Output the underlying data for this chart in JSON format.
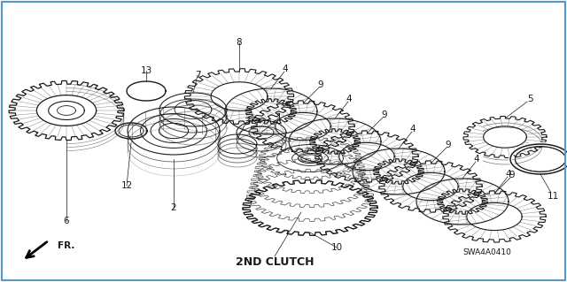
{
  "bg_color": "#ffffff",
  "line_color": "#1a1a1a",
  "label_2nd_clutch": "2ND CLUTCH",
  "label_diagram_code": "SWA4A0410",
  "label_fr": "FR.",
  "border_color": "#5599cc",
  "label_fontsize": 7.5
}
